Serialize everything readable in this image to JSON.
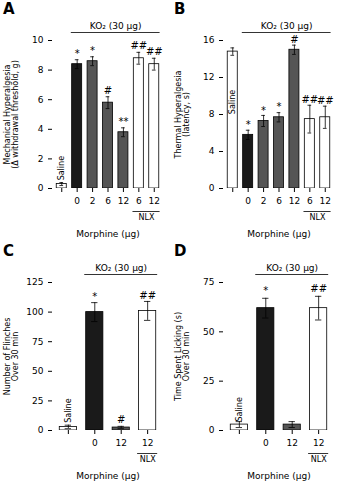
{
  "chart_data": [
    {
      "type": "bar",
      "panel_label": "A",
      "title": "KO₂ (30 μg)",
      "xlabel": "Morphine (μg)",
      "ylabel": "Mechanical Hyperalgesia\n(Δ withdrawal threshold, g)",
      "categories": [
        null,
        "0",
        "2",
        "6",
        "12",
        "6",
        "12"
      ],
      "inner_labels": [
        "Saline",
        null,
        null,
        null,
        null,
        null,
        null
      ],
      "values": [
        0.3,
        8.4,
        8.6,
        5.8,
        3.8,
        8.8,
        8.4
      ],
      "errors": [
        0.1,
        0.3,
        0.3,
        0.4,
        0.3,
        0.4,
        0.4
      ],
      "colors": [
        "#ffffff",
        "#1a1a1a",
        "#555555",
        "#555555",
        "#555555",
        "#ffffff",
        "#ffffff"
      ],
      "ylim": [
        0,
        10
      ],
      "yticks": [
        0,
        2,
        4,
        6,
        8,
        10
      ],
      "annotations": [
        {
          "x": 1,
          "y": 8.9,
          "text": "*"
        },
        {
          "x": 2,
          "y": 9.1,
          "text": "*"
        },
        {
          "x": 3,
          "y": 6.4,
          "text": "#"
        },
        {
          "x": 4,
          "y": 4.3,
          "text": "**"
        },
        {
          "x": 5,
          "y": 9.4,
          "text": "##"
        },
        {
          "x": 6,
          "y": 9.0,
          "text": "##"
        }
      ],
      "title_span": [
        1,
        6
      ],
      "groups": [
        {
          "text": "NLX",
          "span": [
            5,
            6
          ]
        }
      ]
    },
    {
      "type": "bar",
      "panel_label": "B",
      "title": "KO₂ (30 μg)",
      "xlabel": "Morphine (μg)",
      "ylabel": "Thermal Hyperalgesia\n(latency, s)",
      "categories": [
        null,
        "0",
        "2",
        "6",
        "12",
        "6",
        "12"
      ],
      "inner_labels": [
        "Saline",
        null,
        null,
        null,
        null,
        null,
        null
      ],
      "values": [
        14.8,
        5.8,
        7.3,
        7.7,
        15.0,
        7.5,
        7.7
      ],
      "errors": [
        0.4,
        0.5,
        0.6,
        0.5,
        0.5,
        1.5,
        1.2
      ],
      "colors": [
        "#ffffff",
        "#1a1a1a",
        "#555555",
        "#555555",
        "#555555",
        "#ffffff",
        "#ffffff"
      ],
      "ylim": [
        0,
        16
      ],
      "yticks": [
        0,
        4,
        8,
        12,
        16
      ],
      "annotations": [
        {
          "x": 1,
          "y": 6.5,
          "text": "*"
        },
        {
          "x": 2,
          "y": 8.1,
          "text": "*"
        },
        {
          "x": 3,
          "y": 8.5,
          "text": "*"
        },
        {
          "x": 4,
          "y": 15.7,
          "text": "#"
        },
        {
          "x": 5,
          "y": 9.2,
          "text": "##"
        },
        {
          "x": 6,
          "y": 9.1,
          "text": "##"
        }
      ],
      "title_span": [
        1,
        6
      ],
      "groups": [
        {
          "text": "NLX",
          "span": [
            5,
            6
          ]
        }
      ]
    },
    {
      "type": "bar",
      "panel_label": "C",
      "title": "KO₂ (30 μg)",
      "xlabel": "Morphine (μg)",
      "ylabel": "Number of Flinches\nOver 30 min",
      "categories": [
        null,
        "0",
        "12",
        "12"
      ],
      "inner_labels": [
        "Saline",
        null,
        null,
        null
      ],
      "values": [
        3.0,
        100.0,
        2.5,
        101.0
      ],
      "errors": [
        1.5,
        8.0,
        1.0,
        8.0
      ],
      "colors": [
        "#ffffff",
        "#1a1a1a",
        "#555555",
        "#ffffff"
      ],
      "ylim": [
        0,
        125
      ],
      "yticks": [
        0,
        25,
        50,
        75,
        100,
        125
      ],
      "annotations": [
        {
          "x": 1,
          "y": 110.0,
          "text": "*"
        },
        {
          "x": 2,
          "y": 6.0,
          "text": "#"
        },
        {
          "x": 3,
          "y": 111.0,
          "text": "##"
        }
      ],
      "title_span": [
        1,
        3
      ],
      "groups": [
        {
          "text": "NLX",
          "span": [
            3,
            3
          ]
        }
      ]
    },
    {
      "type": "bar",
      "panel_label": "D",
      "title": "KO₂ (30 μg)",
      "xlabel": "Morphine (μg)",
      "ylabel": "Time Spent Licking (s)\nOver 30 min",
      "categories": [
        null,
        "0",
        "12",
        "12"
      ],
      "inner_labels": [
        "Saline",
        null,
        null,
        null
      ],
      "values": [
        3.0,
        62.0,
        3.0,
        62.0
      ],
      "errors": [
        1.5,
        5.0,
        1.5,
        6.0
      ],
      "colors": [
        "#ffffff",
        "#1a1a1a",
        "#555555",
        "#ffffff"
      ],
      "ylim": [
        0,
        75
      ],
      "yticks": [
        0,
        25,
        50,
        75
      ],
      "annotations": [
        {
          "x": 1,
          "y": 69.0,
          "text": "*"
        },
        {
          "x": 3,
          "y": 70.0,
          "text": "##"
        }
      ],
      "title_span": [
        1,
        3
      ],
      "groups": [
        {
          "text": "NLX",
          "span": [
            3,
            3
          ]
        }
      ]
    }
  ]
}
